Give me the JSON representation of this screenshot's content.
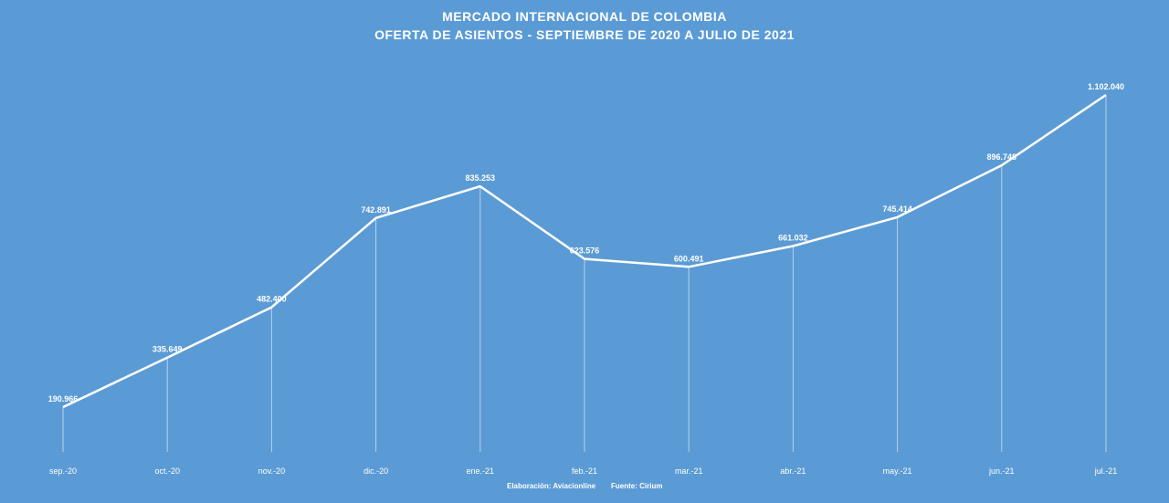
{
  "chart_data": {
    "type": "line",
    "title": "MERCADO INTERNACIONAL  DE COLOMBIA",
    "subtitle": "OFERTA  DE  ASIENTOS  - SEPTIEMBRE  DE  2020  A  JULIO  DE  2021",
    "xlabel": "",
    "ylabel": "",
    "categories": [
      "sep.-20",
      "oct.-20",
      "nov.-20",
      "dic.-20",
      "ene.-21",
      "feb.-21",
      "mar.-21",
      "abr.-21",
      "may.-21",
      "jun.-21",
      "jul.-21"
    ],
    "values": [
      190966,
      335649,
      482400,
      742891,
      835253,
      623576,
      600491,
      661032,
      745414,
      896748,
      1102040
    ],
    "value_labels": [
      "190.966",
      "335.649",
      "482.400",
      "742.891",
      "835.253",
      "623.576",
      "600.491",
      "661.032",
      "745.414",
      "896.748",
      "1.102.040"
    ],
    "grid": false,
    "legend": "none",
    "colors": {
      "background": "#5b9bd5",
      "line": "#ffffff"
    }
  },
  "footer": {
    "credit_elaboracion": "Elaboración:  Aviacionline",
    "credit_fuente": "Fuente: Cirium"
  }
}
